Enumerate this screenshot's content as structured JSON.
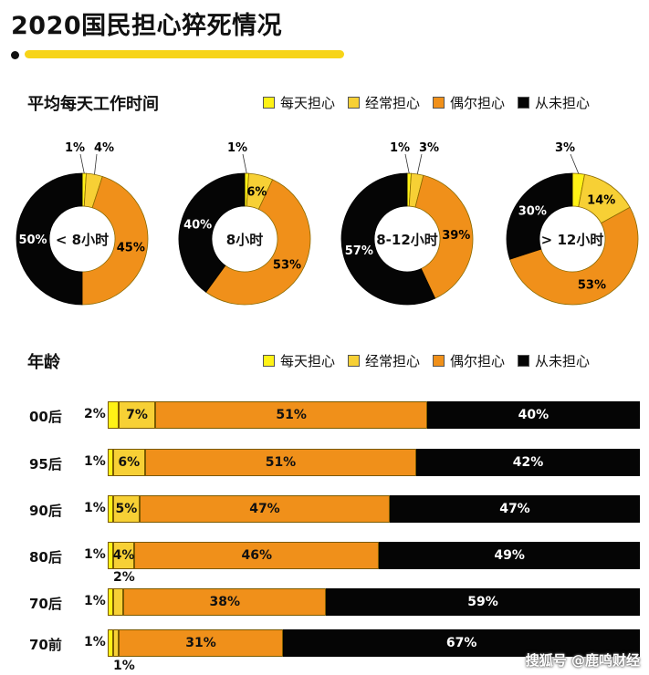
{
  "title": "2020国民担心猝死情况",
  "section1_label": "平均每天工作时间",
  "section2_label": "年龄",
  "legend": [
    {
      "label": "每天担心",
      "color": "#fff216"
    },
    {
      "label": "经常担心",
      "color": "#f7d035"
    },
    {
      "label": "偶尔担心",
      "color": "#f0901a"
    },
    {
      "label": "从未担心",
      "color": "#050505"
    }
  ],
  "watermark": "搜狐号 @鹿鸣财经",
  "chart_data": [
    {
      "type": "pie",
      "title": "平均每天工作时间",
      "legend": [
        "每天担心",
        "经常担心",
        "偶尔担心",
        "从未担心"
      ],
      "donuts": [
        {
          "center_label": "< 8小时",
          "values": [
            1,
            4,
            45,
            50
          ],
          "labels": [
            "1%",
            "4%",
            "45%",
            "50%"
          ]
        },
        {
          "center_label": "8小时",
          "values": [
            1,
            6,
            53,
            40
          ],
          "labels": [
            "1%",
            "6%",
            "53%",
            "40%"
          ]
        },
        {
          "center_label": "8-12小时",
          "values": [
            1,
            3,
            39,
            57
          ],
          "labels": [
            "1%",
            "3%",
            "39%",
            "57%"
          ]
        },
        {
          "center_label": "> 12小时",
          "values": [
            3,
            14,
            53,
            30
          ],
          "labels": [
            "3%",
            "14%",
            "53%",
            "30%"
          ]
        }
      ]
    },
    {
      "type": "bar",
      "orientation": "horizontal-stacked",
      "title": "年龄",
      "categories": [
        "00后",
        "95后",
        "90后",
        "80后",
        "70后",
        "70前"
      ],
      "series": [
        {
          "name": "每天担心",
          "values": [
            2,
            1,
            1,
            1,
            1,
            1
          ],
          "labels": [
            "2%",
            "1%",
            "1%",
            "1%",
            "1%",
            "1%"
          ]
        },
        {
          "name": "经常担心",
          "values": [
            7,
            6,
            5,
            4,
            2,
            1
          ],
          "labels": [
            "7%",
            "6%",
            "5%",
            "4%",
            "2%",
            "1%"
          ]
        },
        {
          "name": "偶尔担心",
          "values": [
            51,
            51,
            47,
            46,
            38,
            31
          ],
          "labels": [
            "51%",
            "51%",
            "47%",
            "46%",
            "38%",
            "31%"
          ]
        },
        {
          "name": "从未担心",
          "values": [
            40,
            42,
            47,
            49,
            59,
            67
          ],
          "labels": [
            "40%",
            "42%",
            "47%",
            "49%",
            "59%",
            "67%"
          ]
        }
      ]
    }
  ]
}
